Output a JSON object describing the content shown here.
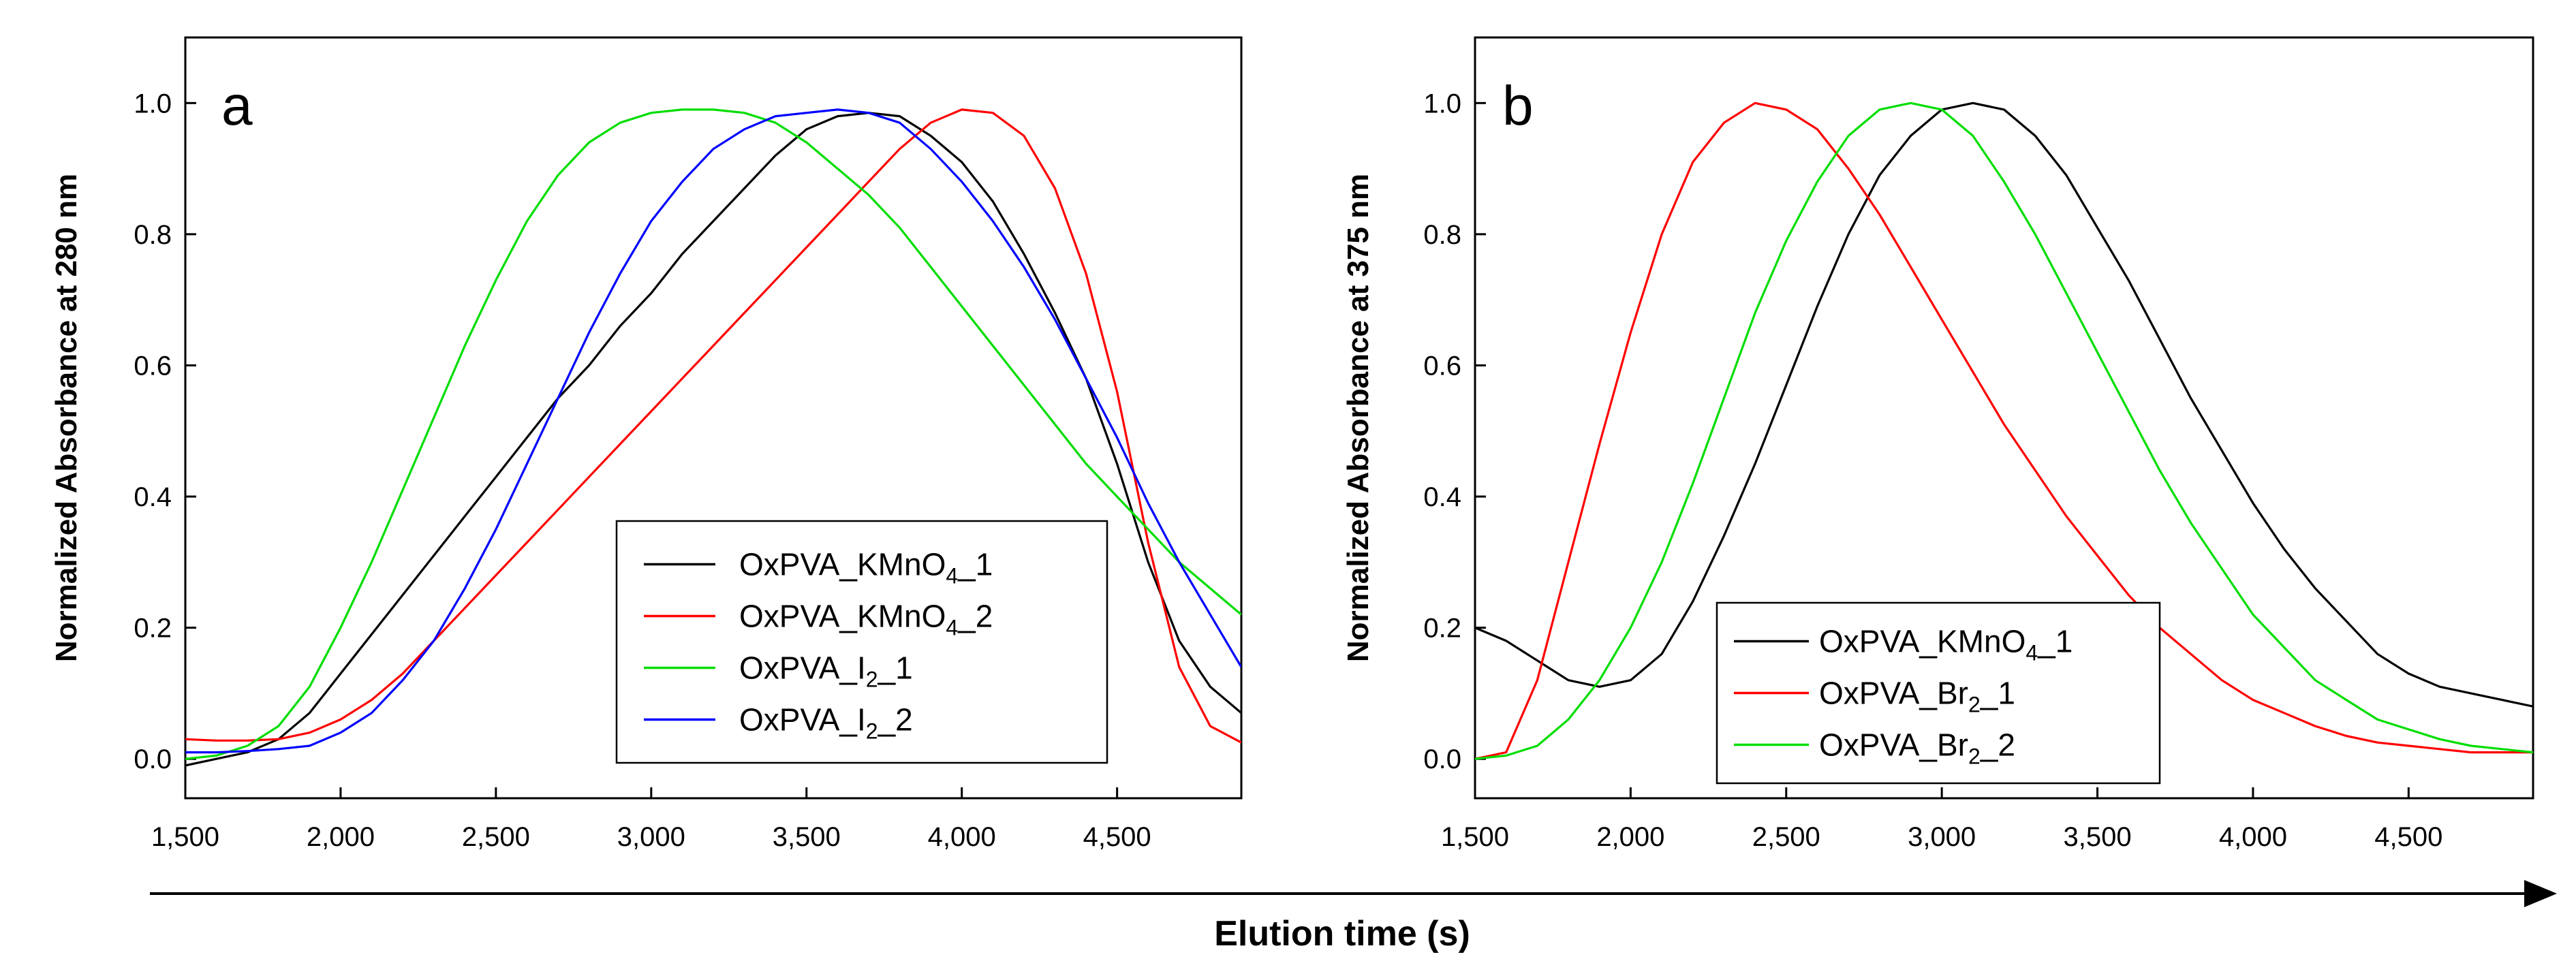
{
  "figure": {
    "shared_xlabel": "Elution time (s)"
  },
  "chart_data": [
    {
      "type": "line",
      "panel_letter": "a",
      "title": "",
      "xlabel": "",
      "ylabel": "Normalized Absorbance at 280 nm",
      "xlim": [
        1500,
        4900
      ],
      "ylim": [
        -0.06,
        1.1
      ],
      "x_ticks": [
        1500,
        2000,
        2500,
        3000,
        3500,
        4000,
        4500
      ],
      "x_tick_labels": [
        "1,500",
        "2,000",
        "2,500",
        "3,000",
        "3,500",
        "4,000",
        "4,500"
      ],
      "y_ticks": [
        0.0,
        0.2,
        0.4,
        0.6,
        0.8,
        1.0
      ],
      "y_tick_labels": [
        "0.0",
        "0.2",
        "0.4",
        "0.6",
        "0.8",
        "1.0"
      ],
      "grid": false,
      "legend_position": "bottom-right",
      "series": [
        {
          "name": "OxPVA_KMnO4_1",
          "legend_parts": [
            "OxPVA_KMnO",
            "4",
            "_1"
          ],
          "color": "#000000",
          "x": [
            1500,
            1600,
            1700,
            1800,
            1900,
            2000,
            2100,
            2200,
            2300,
            2400,
            2500,
            2600,
            2700,
            2800,
            2900,
            3000,
            3100,
            3200,
            3300,
            3400,
            3500,
            3600,
            3700,
            3800,
            3900,
            4000,
            4100,
            4200,
            4300,
            4400,
            4500,
            4600,
            4700,
            4800,
            4900
          ],
          "y": [
            -0.01,
            0.0,
            0.01,
            0.03,
            0.07,
            0.13,
            0.19,
            0.25,
            0.31,
            0.37,
            0.43,
            0.49,
            0.55,
            0.6,
            0.66,
            0.71,
            0.77,
            0.82,
            0.87,
            0.92,
            0.96,
            0.98,
            0.985,
            0.98,
            0.95,
            0.91,
            0.85,
            0.77,
            0.68,
            0.58,
            0.45,
            0.3,
            0.18,
            0.11,
            0.07
          ]
        },
        {
          "name": "OxPVA_KMnO4_2",
          "legend_parts": [
            "OxPVA_KMnO",
            "4",
            "_2"
          ],
          "color": "#ff0000",
          "x": [
            1500,
            1600,
            1700,
            1800,
            1900,
            2000,
            2100,
            2200,
            2300,
            2400,
            2500,
            2600,
            2700,
            2800,
            2900,
            3000,
            3100,
            3200,
            3300,
            3400,
            3500,
            3600,
            3700,
            3800,
            3900,
            4000,
            4100,
            4200,
            4300,
            4400,
            4500,
            4600,
            4700,
            4800,
            4900
          ],
          "y": [
            0.03,
            0.028,
            0.028,
            0.03,
            0.04,
            0.06,
            0.09,
            0.13,
            0.18,
            0.23,
            0.28,
            0.33,
            0.38,
            0.43,
            0.48,
            0.53,
            0.58,
            0.63,
            0.68,
            0.73,
            0.78,
            0.83,
            0.88,
            0.93,
            0.97,
            0.99,
            0.985,
            0.95,
            0.87,
            0.74,
            0.56,
            0.33,
            0.14,
            0.05,
            0.025
          ]
        },
        {
          "name": "OxPVA_I2_1",
          "legend_parts": [
            "OxPVA_I",
            "2",
            "_1"
          ],
          "color": "#00dd00",
          "x": [
            1500,
            1600,
            1700,
            1800,
            1900,
            2000,
            2100,
            2200,
            2300,
            2400,
            2500,
            2600,
            2700,
            2800,
            2900,
            3000,
            3100,
            3200,
            3300,
            3400,
            3500,
            3600,
            3700,
            3800,
            3900,
            4000,
            4100,
            4200,
            4300,
            4400,
            4500,
            4600,
            4700,
            4800,
            4900
          ],
          "y": [
            0.0,
            0.005,
            0.02,
            0.05,
            0.11,
            0.2,
            0.3,
            0.41,
            0.52,
            0.63,
            0.73,
            0.82,
            0.89,
            0.94,
            0.97,
            0.985,
            0.99,
            0.99,
            0.985,
            0.97,
            0.94,
            0.9,
            0.86,
            0.81,
            0.75,
            0.69,
            0.63,
            0.57,
            0.51,
            0.45,
            0.4,
            0.35,
            0.3,
            0.26,
            0.22
          ]
        },
        {
          "name": "OxPVA_I2_2",
          "legend_parts": [
            "OxPVA_I",
            "2",
            "_2"
          ],
          "color": "#0000ff",
          "x": [
            1500,
            1600,
            1700,
            1800,
            1900,
            2000,
            2100,
            2200,
            2300,
            2400,
            2500,
            2600,
            2700,
            2800,
            2900,
            3000,
            3100,
            3200,
            3300,
            3400,
            3500,
            3600,
            3700,
            3800,
            3900,
            4000,
            4100,
            4200,
            4300,
            4400,
            4500,
            4600,
            4700,
            4800,
            4900
          ],
          "y": [
            0.01,
            0.01,
            0.012,
            0.015,
            0.02,
            0.04,
            0.07,
            0.12,
            0.18,
            0.26,
            0.35,
            0.45,
            0.55,
            0.65,
            0.74,
            0.82,
            0.88,
            0.93,
            0.96,
            0.98,
            0.985,
            0.99,
            0.985,
            0.97,
            0.93,
            0.88,
            0.82,
            0.75,
            0.67,
            0.58,
            0.49,
            0.39,
            0.3,
            0.22,
            0.14
          ]
        }
      ]
    },
    {
      "type": "line",
      "panel_letter": "b",
      "title": "",
      "xlabel": "",
      "ylabel": "Normalized Absorbance at 375 nm",
      "xlim": [
        1500,
        4900
      ],
      "ylim": [
        -0.06,
        1.1
      ],
      "x_ticks": [
        1500,
        2000,
        2500,
        3000,
        3500,
        4000,
        4500
      ],
      "x_tick_labels": [
        "1,500",
        "2,000",
        "2,500",
        "3,000",
        "3,500",
        "4,000",
        "4,500"
      ],
      "y_ticks": [
        0.0,
        0.2,
        0.4,
        0.6,
        0.8,
        1.0
      ],
      "y_tick_labels": [
        "0.0",
        "0.2",
        "0.4",
        "0.6",
        "0.8",
        "1.0"
      ],
      "grid": false,
      "legend_position": "bottom-left",
      "series": [
        {
          "name": "OxPVA_KMnO4_1",
          "legend_parts": [
            "OxPVA_KMnO",
            "4",
            "_1"
          ],
          "color": "#000000",
          "x": [
            1500,
            1600,
            1700,
            1800,
            1900,
            2000,
            2100,
            2200,
            2300,
            2400,
            2500,
            2600,
            2700,
            2800,
            2900,
            3000,
            3100,
            3200,
            3300,
            3400,
            3500,
            3600,
            3700,
            3800,
            3900,
            4000,
            4100,
            4200,
            4300,
            4400,
            4500,
            4600,
            4700,
            4800,
            4900
          ],
          "y": [
            0.2,
            0.18,
            0.15,
            0.12,
            0.11,
            0.12,
            0.16,
            0.24,
            0.34,
            0.45,
            0.57,
            0.69,
            0.8,
            0.89,
            0.95,
            0.99,
            1.0,
            0.99,
            0.95,
            0.89,
            0.81,
            0.73,
            0.64,
            0.55,
            0.47,
            0.39,
            0.32,
            0.26,
            0.21,
            0.16,
            0.13,
            0.11,
            0.1,
            0.09,
            0.08
          ]
        },
        {
          "name": "OxPVA_Br2_1",
          "legend_parts": [
            "OxPVA_Br",
            "2",
            "_1"
          ],
          "color": "#ff0000",
          "x": [
            1500,
            1600,
            1700,
            1800,
            1900,
            2000,
            2100,
            2200,
            2300,
            2400,
            2500,
            2600,
            2700,
            2800,
            2900,
            3000,
            3100,
            3200,
            3300,
            3400,
            3500,
            3600,
            3700,
            3800,
            3900,
            4000,
            4100,
            4200,
            4300,
            4400,
            4500,
            4600,
            4700,
            4800,
            4900
          ],
          "y": [
            0.0,
            0.01,
            0.12,
            0.3,
            0.48,
            0.65,
            0.8,
            0.91,
            0.97,
            1.0,
            0.99,
            0.96,
            0.9,
            0.83,
            0.75,
            0.67,
            0.59,
            0.51,
            0.44,
            0.37,
            0.31,
            0.25,
            0.2,
            0.16,
            0.12,
            0.09,
            0.07,
            0.05,
            0.035,
            0.025,
            0.02,
            0.015,
            0.01,
            0.01,
            0.01
          ]
        },
        {
          "name": "OxPVA_Br2_2",
          "legend_parts": [
            "OxPVA_Br",
            "2",
            "_2"
          ],
          "color": "#00dd00",
          "x": [
            1500,
            1600,
            1700,
            1800,
            1900,
            2000,
            2100,
            2200,
            2300,
            2400,
            2500,
            2600,
            2700,
            2800,
            2900,
            3000,
            3100,
            3200,
            3300,
            3400,
            3500,
            3600,
            3700,
            3800,
            3900,
            4000,
            4100,
            4200,
            4300,
            4400,
            4500,
            4600,
            4700,
            4800,
            4900
          ],
          "y": [
            0.0,
            0.005,
            0.02,
            0.06,
            0.12,
            0.2,
            0.3,
            0.42,
            0.55,
            0.68,
            0.79,
            0.88,
            0.95,
            0.99,
            1.0,
            0.99,
            0.95,
            0.88,
            0.8,
            0.71,
            0.62,
            0.53,
            0.44,
            0.36,
            0.29,
            0.22,
            0.17,
            0.12,
            0.09,
            0.06,
            0.045,
            0.03,
            0.02,
            0.015,
            0.01
          ]
        }
      ]
    }
  ]
}
